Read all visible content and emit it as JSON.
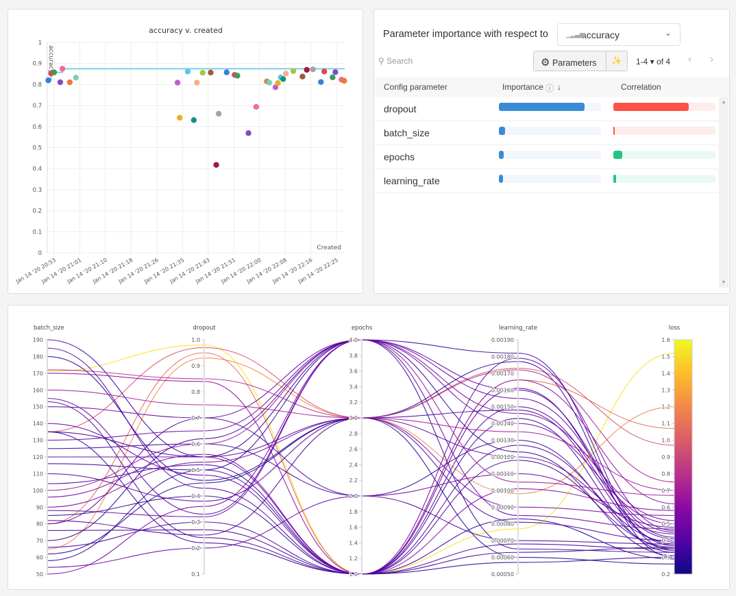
{
  "scatter": {
    "title": "accuracy v. created",
    "ylabel": "accuracy",
    "xlabel": "Created",
    "ylim": [
      0,
      1
    ],
    "yticks": [
      "0",
      "0.1",
      "0.2",
      "0.3",
      "0.4",
      "0.5",
      "0.6",
      "0.7",
      "0.8",
      "0.9",
      "1"
    ],
    "xticks": [
      "Jan 14 '20 20:53",
      "Jan 14 '20 21:01",
      "Jan 14 '20 21:10",
      "Jan 14 '20 21:18",
      "Jan 14 '20 21:26",
      "Jan 14 '20 21:35",
      "Jan 14 '20 21:43",
      "Jan 14 '20 21:51",
      "Jan 14 '20 22:00",
      "Jan 14 '20 22:08",
      "Jan 14 '20 22:16",
      "Jan 14 '20 22:25"
    ],
    "best_line_color": "#7fcde8",
    "points": [
      [
        "20:51:06",
        0.82,
        "#3b7dd8"
      ],
      [
        "20:52:00",
        0.853,
        "#e04848"
      ],
      [
        "20:53:00",
        0.858,
        "#3a9d5d"
      ],
      [
        "20:55:00",
        0.811,
        "#7b4fc0"
      ],
      [
        "20:55:42",
        0.875,
        "#ee6e8c"
      ],
      [
        "20:58:06",
        0.811,
        "#f0783a"
      ],
      [
        "21:00:06",
        0.833,
        "#7fcfb8"
      ],
      [
        "21:33:12",
        0.809,
        "#c45ccc"
      ],
      [
        "21:33:54",
        0.642,
        "#e8b020"
      ],
      [
        "21:36:30",
        0.862,
        "#5bc6e8"
      ],
      [
        "21:38:30",
        0.631,
        "#1a8f80"
      ],
      [
        "21:39:30",
        0.809,
        "#f4b08c"
      ],
      [
        "21:41:24",
        0.856,
        "#9bc94a"
      ],
      [
        "21:44:00",
        0.857,
        "#a05a3a"
      ],
      [
        "21:45:48",
        0.418,
        "#a01848"
      ],
      [
        "21:46:36",
        0.661,
        "#a0a4a8"
      ],
      [
        "21:49:12",
        0.858,
        "#3b7dd8"
      ],
      [
        "21:51:48",
        0.846,
        "#e04848"
      ],
      [
        "21:52:42",
        0.842,
        "#3a9d5d"
      ],
      [
        "21:56:18",
        0.569,
        "#7b4fc0"
      ],
      [
        "21:58:48",
        0.694,
        "#ee6e8c"
      ],
      [
        "22:02:18",
        0.815,
        "#f0783a"
      ],
      [
        "22:03:06",
        0.809,
        "#7fcfb8"
      ],
      [
        "22:05:06",
        0.787,
        "#c45ccc"
      ],
      [
        "22:05:54",
        0.807,
        "#e8b020"
      ],
      [
        "22:06:48",
        0.834,
        "#5bc6e8"
      ],
      [
        "22:07:36",
        0.826,
        "#1a8f80"
      ],
      [
        "22:08:30",
        0.852,
        "#f4b08c"
      ],
      [
        "22:10:54",
        0.864,
        "#9bc94a"
      ],
      [
        "22:13:54",
        0.838,
        "#a05a3a"
      ],
      [
        "22:15:18",
        0.87,
        "#a01848"
      ],
      [
        "22:17:18",
        0.872,
        "#a0a4a8"
      ],
      [
        "22:19:54",
        0.812,
        "#3b7dd8"
      ],
      [
        "22:21:00",
        0.862,
        "#e04848"
      ],
      [
        "22:23:42",
        0.834,
        "#3a9d5d"
      ],
      [
        "22:24:36",
        0.859,
        "#7b4fc0"
      ],
      [
        "22:26:36",
        0.823,
        "#ee6e8c"
      ],
      [
        "22:27:30",
        0.818,
        "#f0783a"
      ]
    ]
  },
  "importance": {
    "title": "Parameter importance with respect to",
    "metric": "accuracy",
    "metric_icon": "bar-chart-icon",
    "search_placeholder": "Search",
    "parameters_label": "Parameters",
    "page_range": "1-4",
    "page_of": "of 4",
    "headers": {
      "param": "Config parameter",
      "importance": "Importance",
      "correlation": "Correlation"
    },
    "rows": [
      {
        "name": "dropout",
        "importance": 0.84,
        "correlation": -0.74
      },
      {
        "name": "batch_size",
        "importance": 0.06,
        "correlation": -0.01
      },
      {
        "name": "epochs",
        "importance": 0.05,
        "correlation": 0.09
      },
      {
        "name": "learning_rate",
        "importance": 0.04,
        "correlation": 0.03
      }
    ],
    "colors": {
      "importance": "#3a8bd6",
      "negative": "#ff5246",
      "positive": "#23c582"
    }
  },
  "parallel": {
    "axes": [
      {
        "name": "batch_size",
        "range": [
          50,
          190
        ],
        "ticks": [
          "50",
          "60",
          "70",
          "80",
          "90",
          "100",
          "110",
          "120",
          "130",
          "140",
          "150",
          "160",
          "170",
          "180",
          "190"
        ]
      },
      {
        "name": "dropout",
        "range": [
          0.1,
          1.0
        ],
        "ticks": [
          "0.1",
          "0.2",
          "0.3",
          "0.4",
          "0.5",
          "0.6",
          "0.7",
          "0.8",
          "0.9",
          "1.0"
        ]
      },
      {
        "name": "epochs",
        "range": [
          1,
          4
        ],
        "ticks": [
          "1.0",
          "1.2",
          "1.4",
          "1.6",
          "1.8",
          "2.0",
          "2.2",
          "2.4",
          "2.6",
          "2.8",
          "3.0",
          "3.2",
          "3.4",
          "3.6",
          "3.8",
          "4.0"
        ]
      },
      {
        "name": "learning_rate",
        "range": [
          0.0005,
          0.0019
        ],
        "ticks": [
          "0.00050",
          "0.00060",
          "0.00070",
          "0.00080",
          "0.00090",
          "0.00100",
          "0.00110",
          "0.00120",
          "0.00130",
          "0.00140",
          "0.00150",
          "0.00160",
          "0.00170",
          "0.00180",
          "0.00190"
        ]
      },
      {
        "name": "loss",
        "range": [
          0.2,
          1.6
        ],
        "ticks": [
          "0.2",
          "0.3",
          "0.4",
          "0.5",
          "0.6",
          "0.7",
          "0.8",
          "0.9",
          "1.0",
          "1.1",
          "1.2",
          "1.3",
          "1.4",
          "1.5",
          "1.6"
        ]
      }
    ],
    "colorscale": "plasma",
    "runs": [
      [
        171,
        0.98,
        1,
        0.00077,
        1.52
      ],
      [
        65,
        0.93,
        3,
        0.00098,
        1.2
      ],
      [
        80,
        0.95,
        1,
        0.00166,
        1.07
      ],
      [
        135,
        0.97,
        3,
        0.00173,
        0.97
      ],
      [
        190,
        0.55,
        4,
        0.00182,
        0.34
      ],
      [
        180,
        0.46,
        3,
        0.00177,
        0.3
      ],
      [
        172,
        0.85,
        3,
        0.00172,
        0.75
      ],
      [
        170,
        0.84,
        1,
        0.00166,
        0.62
      ],
      [
        155,
        0.33,
        4,
        0.0016,
        0.42
      ],
      [
        153,
        0.24,
        1,
        0.00161,
        0.37
      ],
      [
        150,
        0.7,
        4,
        0.00155,
        0.45
      ],
      [
        135,
        0.55,
        3,
        0.00148,
        0.38
      ],
      [
        135,
        0.22,
        1,
        0.00143,
        0.33
      ],
      [
        130,
        0.65,
        4,
        0.0014,
        0.5
      ],
      [
        125,
        0.6,
        2,
        0.0013,
        0.35
      ],
      [
        120,
        0.55,
        1,
        0.00127,
        0.39
      ],
      [
        116,
        0.5,
        4,
        0.00123,
        0.31
      ],
      [
        110,
        0.38,
        3,
        0.0012,
        0.44
      ],
      [
        104,
        0.52,
        1,
        0.00118,
        0.36
      ],
      [
        100,
        0.6,
        4,
        0.00105,
        0.67
      ],
      [
        96,
        0.56,
        1,
        0.00101,
        0.58
      ],
      [
        90,
        0.53,
        3,
        0.0009,
        0.55
      ],
      [
        88,
        0.32,
        4,
        0.00085,
        0.47
      ],
      [
        85,
        0.4,
        1,
        0.00083,
        0.29
      ],
      [
        82,
        0.25,
        3,
        0.00081,
        0.4
      ],
      [
        80,
        0.7,
        2,
        0.0007,
        0.38
      ],
      [
        76,
        0.27,
        1,
        0.00068,
        0.35
      ],
      [
        70,
        0.62,
        4,
        0.00065,
        0.33
      ],
      [
        66,
        0.3,
        1,
        0.00063,
        0.36
      ],
      [
        62,
        0.45,
        3,
        0.0006,
        0.26
      ],
      [
        58,
        0.5,
        1,
        0.00057,
        0.3
      ],
      [
        54,
        0.2,
        2,
        0.0011,
        0.48
      ],
      [
        50,
        0.36,
        4,
        0.00146,
        0.52
      ],
      [
        185,
        0.43,
        1,
        0.0015,
        0.41
      ],
      [
        160,
        0.75,
        3,
        0.00135,
        0.7
      ],
      [
        140,
        0.48,
        1,
        0.00179,
        0.46
      ]
    ]
  }
}
